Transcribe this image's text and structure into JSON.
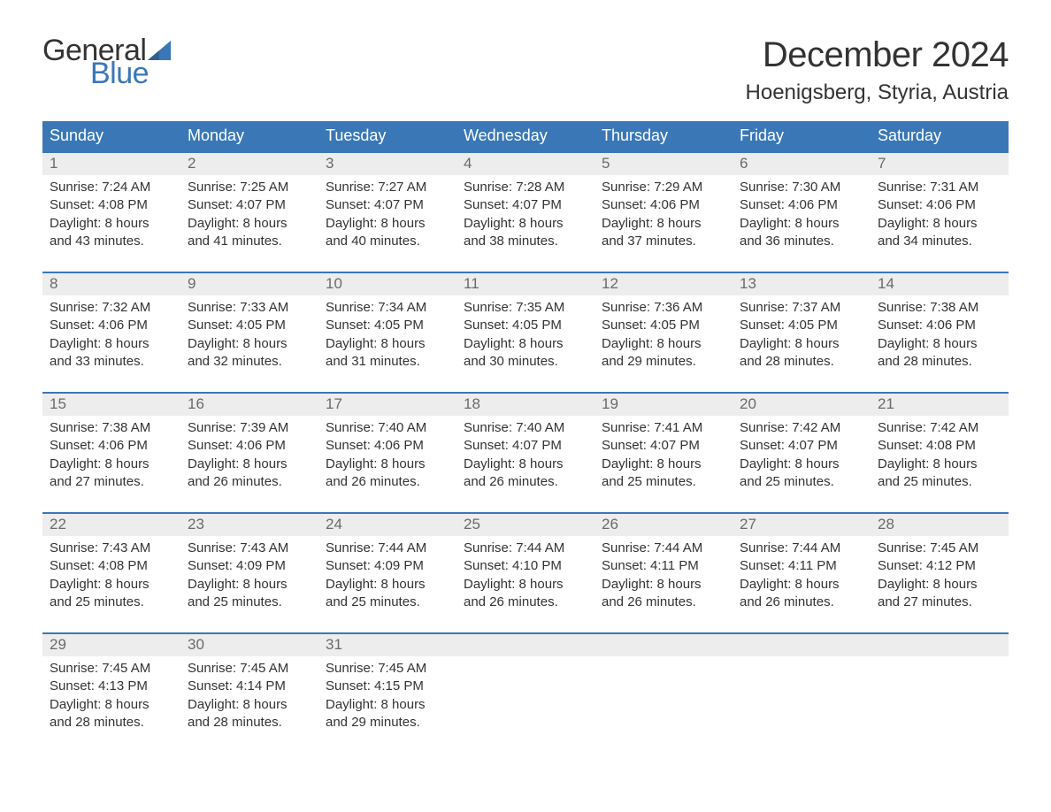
{
  "logo": {
    "word1": "General",
    "word2": "Blue",
    "sail_color": "#3a77b7"
  },
  "title": "December 2024",
  "location": "Hoenigsberg, Styria, Austria",
  "colors": {
    "header_bg": "#3a77b7",
    "header_text": "#ffffff",
    "date_row_bg": "#ededed",
    "date_text": "#6a6a6a",
    "body_text": "#333333",
    "week_border": "#3a77b7",
    "page_bg": "#ffffff"
  },
  "typography": {
    "title_fontsize": 40,
    "location_fontsize": 24,
    "dayheader_fontsize": 18,
    "date_fontsize": 17,
    "cell_fontsize": 15,
    "logo_fontsize": 34
  },
  "day_names": [
    "Sunday",
    "Monday",
    "Tuesday",
    "Wednesday",
    "Thursday",
    "Friday",
    "Saturday"
  ],
  "weeks": [
    {
      "dates": [
        "1",
        "2",
        "3",
        "4",
        "5",
        "6",
        "7"
      ],
      "cells": [
        {
          "sunrise": "Sunrise: 7:24 AM",
          "sunset": "Sunset: 4:08 PM",
          "d1": "Daylight: 8 hours",
          "d2": "and 43 minutes."
        },
        {
          "sunrise": "Sunrise: 7:25 AM",
          "sunset": "Sunset: 4:07 PM",
          "d1": "Daylight: 8 hours",
          "d2": "and 41 minutes."
        },
        {
          "sunrise": "Sunrise: 7:27 AM",
          "sunset": "Sunset: 4:07 PM",
          "d1": "Daylight: 8 hours",
          "d2": "and 40 minutes."
        },
        {
          "sunrise": "Sunrise: 7:28 AM",
          "sunset": "Sunset: 4:07 PM",
          "d1": "Daylight: 8 hours",
          "d2": "and 38 minutes."
        },
        {
          "sunrise": "Sunrise: 7:29 AM",
          "sunset": "Sunset: 4:06 PM",
          "d1": "Daylight: 8 hours",
          "d2": "and 37 minutes."
        },
        {
          "sunrise": "Sunrise: 7:30 AM",
          "sunset": "Sunset: 4:06 PM",
          "d1": "Daylight: 8 hours",
          "d2": "and 36 minutes."
        },
        {
          "sunrise": "Sunrise: 7:31 AM",
          "sunset": "Sunset: 4:06 PM",
          "d1": "Daylight: 8 hours",
          "d2": "and 34 minutes."
        }
      ]
    },
    {
      "dates": [
        "8",
        "9",
        "10",
        "11",
        "12",
        "13",
        "14"
      ],
      "cells": [
        {
          "sunrise": "Sunrise: 7:32 AM",
          "sunset": "Sunset: 4:06 PM",
          "d1": "Daylight: 8 hours",
          "d2": "and 33 minutes."
        },
        {
          "sunrise": "Sunrise: 7:33 AM",
          "sunset": "Sunset: 4:05 PM",
          "d1": "Daylight: 8 hours",
          "d2": "and 32 minutes."
        },
        {
          "sunrise": "Sunrise: 7:34 AM",
          "sunset": "Sunset: 4:05 PM",
          "d1": "Daylight: 8 hours",
          "d2": "and 31 minutes."
        },
        {
          "sunrise": "Sunrise: 7:35 AM",
          "sunset": "Sunset: 4:05 PM",
          "d1": "Daylight: 8 hours",
          "d2": "and 30 minutes."
        },
        {
          "sunrise": "Sunrise: 7:36 AM",
          "sunset": "Sunset: 4:05 PM",
          "d1": "Daylight: 8 hours",
          "d2": "and 29 minutes."
        },
        {
          "sunrise": "Sunrise: 7:37 AM",
          "sunset": "Sunset: 4:05 PM",
          "d1": "Daylight: 8 hours",
          "d2": "and 28 minutes."
        },
        {
          "sunrise": "Sunrise: 7:38 AM",
          "sunset": "Sunset: 4:06 PM",
          "d1": "Daylight: 8 hours",
          "d2": "and 28 minutes."
        }
      ]
    },
    {
      "dates": [
        "15",
        "16",
        "17",
        "18",
        "19",
        "20",
        "21"
      ],
      "cells": [
        {
          "sunrise": "Sunrise: 7:38 AM",
          "sunset": "Sunset: 4:06 PM",
          "d1": "Daylight: 8 hours",
          "d2": "and 27 minutes."
        },
        {
          "sunrise": "Sunrise: 7:39 AM",
          "sunset": "Sunset: 4:06 PM",
          "d1": "Daylight: 8 hours",
          "d2": "and 26 minutes."
        },
        {
          "sunrise": "Sunrise: 7:40 AM",
          "sunset": "Sunset: 4:06 PM",
          "d1": "Daylight: 8 hours",
          "d2": "and 26 minutes."
        },
        {
          "sunrise": "Sunrise: 7:40 AM",
          "sunset": "Sunset: 4:07 PM",
          "d1": "Daylight: 8 hours",
          "d2": "and 26 minutes."
        },
        {
          "sunrise": "Sunrise: 7:41 AM",
          "sunset": "Sunset: 4:07 PM",
          "d1": "Daylight: 8 hours",
          "d2": "and 25 minutes."
        },
        {
          "sunrise": "Sunrise: 7:42 AM",
          "sunset": "Sunset: 4:07 PM",
          "d1": "Daylight: 8 hours",
          "d2": "and 25 minutes."
        },
        {
          "sunrise": "Sunrise: 7:42 AM",
          "sunset": "Sunset: 4:08 PM",
          "d1": "Daylight: 8 hours",
          "d2": "and 25 minutes."
        }
      ]
    },
    {
      "dates": [
        "22",
        "23",
        "24",
        "25",
        "26",
        "27",
        "28"
      ],
      "cells": [
        {
          "sunrise": "Sunrise: 7:43 AM",
          "sunset": "Sunset: 4:08 PM",
          "d1": "Daylight: 8 hours",
          "d2": "and 25 minutes."
        },
        {
          "sunrise": "Sunrise: 7:43 AM",
          "sunset": "Sunset: 4:09 PM",
          "d1": "Daylight: 8 hours",
          "d2": "and 25 minutes."
        },
        {
          "sunrise": "Sunrise: 7:44 AM",
          "sunset": "Sunset: 4:09 PM",
          "d1": "Daylight: 8 hours",
          "d2": "and 25 minutes."
        },
        {
          "sunrise": "Sunrise: 7:44 AM",
          "sunset": "Sunset: 4:10 PM",
          "d1": "Daylight: 8 hours",
          "d2": "and 26 minutes."
        },
        {
          "sunrise": "Sunrise: 7:44 AM",
          "sunset": "Sunset: 4:11 PM",
          "d1": "Daylight: 8 hours",
          "d2": "and 26 minutes."
        },
        {
          "sunrise": "Sunrise: 7:44 AM",
          "sunset": "Sunset: 4:11 PM",
          "d1": "Daylight: 8 hours",
          "d2": "and 26 minutes."
        },
        {
          "sunrise": "Sunrise: 7:45 AM",
          "sunset": "Sunset: 4:12 PM",
          "d1": "Daylight: 8 hours",
          "d2": "and 27 minutes."
        }
      ]
    },
    {
      "dates": [
        "29",
        "30",
        "31",
        "",
        "",
        "",
        ""
      ],
      "cells": [
        {
          "sunrise": "Sunrise: 7:45 AM",
          "sunset": "Sunset: 4:13 PM",
          "d1": "Daylight: 8 hours",
          "d2": "and 28 minutes."
        },
        {
          "sunrise": "Sunrise: 7:45 AM",
          "sunset": "Sunset: 4:14 PM",
          "d1": "Daylight: 8 hours",
          "d2": "and 28 minutes."
        },
        {
          "sunrise": "Sunrise: 7:45 AM",
          "sunset": "Sunset: 4:15 PM",
          "d1": "Daylight: 8 hours",
          "d2": "and 29 minutes."
        },
        null,
        null,
        null,
        null
      ]
    }
  ]
}
